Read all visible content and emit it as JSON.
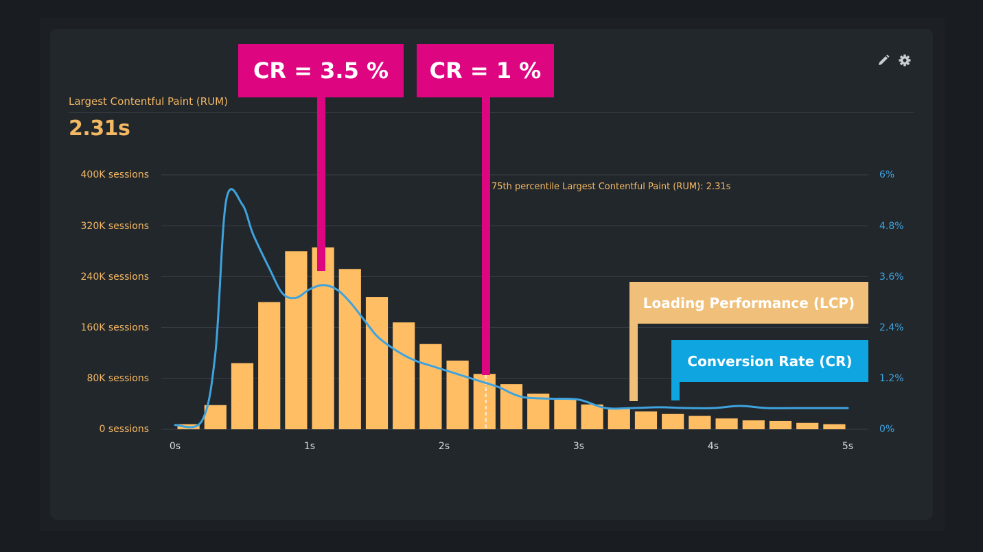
{
  "widget": {
    "title": "Largest Contentful Paint (RUM)",
    "value": "2.31s",
    "edit_icon": "pencil-icon",
    "settings_icon": "gear-icon"
  },
  "chart_data": {
    "type": "bar",
    "title": "Largest Contentful Paint (RUM)",
    "bins_start_s": [
      0.1,
      0.3,
      0.5,
      0.7,
      0.9,
      1.1,
      1.3,
      1.5,
      1.7,
      1.9,
      2.1,
      2.3,
      2.5,
      2.7,
      2.9,
      3.1,
      3.3,
      3.5,
      3.7,
      3.9,
      4.1,
      4.3,
      4.5,
      4.7,
      4.9
    ],
    "series": [
      {
        "name": "Loading Performance (LCP)",
        "axis": "left",
        "unit": "sessions",
        "color": "#ffbe64",
        "values": [
          8000,
          38000,
          104000,
          200000,
          280000,
          286000,
          252000,
          208000,
          168000,
          134000,
          108000,
          87000,
          71000,
          56000,
          47000,
          39000,
          32000,
          28000,
          24000,
          21000,
          17000,
          14000,
          13000,
          10000,
          8000
        ]
      },
      {
        "name": "Conversion Rate (CR)",
        "axis": "right",
        "unit": "%",
        "color": "#3fa3de",
        "type": "line",
        "x": [
          0,
          0.2,
          0.3,
          0.38,
          0.5,
          0.58,
          0.7,
          0.8,
          0.9,
          1.0,
          1.1,
          1.2,
          1.3,
          1.4,
          1.5,
          1.6,
          1.7,
          1.8,
          1.9,
          2.0,
          2.2,
          2.4,
          2.5,
          2.6,
          2.8,
          3.0,
          3.2,
          3.4,
          3.6,
          3.8,
          4.0,
          4.2,
          4.4,
          4.6,
          4.8,
          5.0
        ],
        "values": [
          0.1,
          0.2,
          1.8,
          5.4,
          5.3,
          4.6,
          3.8,
          3.2,
          3.1,
          3.3,
          3.4,
          3.3,
          3.0,
          2.6,
          2.2,
          1.95,
          1.75,
          1.6,
          1.5,
          1.4,
          1.2,
          1.0,
          0.85,
          0.75,
          0.72,
          0.7,
          0.5,
          0.5,
          0.52,
          0.5,
          0.5,
          0.55,
          0.5,
          0.5,
          0.5,
          0.5
        ]
      }
    ],
    "x_ticks": [
      "0s",
      "1s",
      "2s",
      "3s",
      "4s",
      "5s"
    ],
    "xlim": [
      0,
      5
    ],
    "y_left_ticks": [
      "0 sessions",
      "80K sessions",
      "160K sessions",
      "240K sessions",
      "320K sessions",
      "400K sessions"
    ],
    "ylim_left": [
      0,
      400000
    ],
    "y_right_ticks": [
      "0%",
      "1.2%",
      "2.4%",
      "3.6%",
      "4.8%",
      "6%"
    ],
    "ylim_right": [
      0,
      6
    ],
    "grid": true,
    "percentile_marker": {
      "x": 2.31,
      "label": "75th percentile Largest Contentful Paint (RUM): 2.31s"
    },
    "annotations": [
      {
        "label": "CR = 3.5 %",
        "x": 1.05
      },
      {
        "label": "CR = 1 %",
        "x": 2.28
      }
    ]
  },
  "legend": {
    "lcp": "Loading Performance (LCP)",
    "cr": "Conversion Rate (CR)"
  },
  "colors": {
    "bar": "#ffbe64",
    "line": "#3fa3de",
    "highlight": "#dd0680",
    "legend_lcp": "#f0c07a",
    "legend_cr": "#0ea5e0",
    "grid": "#3a4047"
  }
}
